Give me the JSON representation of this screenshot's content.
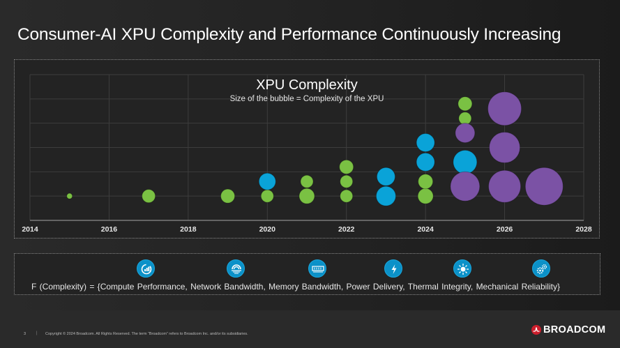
{
  "slide": {
    "title": "Consumer-AI XPU Complexity and Performance Continuously Increasing",
    "formula": "F (Complexity)  =  {Compute Performance,  Network Bandwidth,  Memory Bandwidth,  Power Delivery,  Thermal Integrity,  Mechanical Reliability}",
    "factors": [
      {
        "label": "Compute Performance",
        "icon": "compute-performance-icon"
      },
      {
        "label": "Network Bandwidth",
        "icon": "network-bandwidth-icon"
      },
      {
        "label": "Memory Bandwidth",
        "icon": "memory-bandwidth-icon"
      },
      {
        "label": "Power Delivery",
        "icon": "power-delivery-icon"
      },
      {
        "label": "Thermal Integrity",
        "icon": "thermal-integrity-icon"
      },
      {
        "label": "Mechanical Reliability",
        "icon": "mechanical-reliability-icon"
      }
    ],
    "icon_color": "#0b91c8"
  },
  "footer": {
    "page_number": "3",
    "separator": "|",
    "copyright": "Copyright © 2024 Broadcom.  All Rights Reserved. The term “Broadcom” refers to Broadcom Inc. and/or its subsidiaries.",
    "logo_text": "BROADCOM",
    "logo_color": "#cc1f2d"
  },
  "chart_data": {
    "type": "scatter",
    "subtype": "bubble",
    "title": "XPU Complexity",
    "subtitle": "Size of the bubble = Complexity of the XPU",
    "xlabel": "",
    "ylabel": "",
    "xlim": [
      2014,
      2028
    ],
    "ylim": [
      0,
      6
    ],
    "x_ticks": [
      "2014",
      "2016",
      "2018",
      "2020",
      "2022",
      "2024",
      "2026",
      "2028"
    ],
    "grid": true,
    "legend": "none",
    "series": [
      {
        "name": "green",
        "color": "#7ac143",
        "points": [
          {
            "x": 2015,
            "y": 1.0,
            "size": 4
          },
          {
            "x": 2017,
            "y": 1.0,
            "size": 9.5
          },
          {
            "x": 2019,
            "y": 1.0,
            "size": 10
          },
          {
            "x": 2020,
            "y": 1.0,
            "size": 9
          },
          {
            "x": 2021,
            "y": 1.0,
            "size": 11
          },
          {
            "x": 2021,
            "y": 1.6,
            "size": 9
          },
          {
            "x": 2022,
            "y": 1.0,
            "size": 9
          },
          {
            "x": 2022,
            "y": 1.6,
            "size": 9
          },
          {
            "x": 2022,
            "y": 2.2,
            "size": 10
          },
          {
            "x": 2024,
            "y": 1.0,
            "size": 11
          },
          {
            "x": 2024,
            "y": 1.6,
            "size": 10.5
          },
          {
            "x": 2025,
            "y": 4.2,
            "size": 9
          },
          {
            "x": 2025,
            "y": 4.8,
            "size": 10
          }
        ]
      },
      {
        "name": "blue",
        "color": "#0aa3d8",
        "points": [
          {
            "x": 2020,
            "y": 1.6,
            "size": 12
          },
          {
            "x": 2023,
            "y": 1.0,
            "size": 14
          },
          {
            "x": 2023,
            "y": 1.8,
            "size": 13
          },
          {
            "x": 2024,
            "y": 2.4,
            "size": 13
          },
          {
            "x": 2024,
            "y": 3.2,
            "size": 13
          },
          {
            "x": 2025,
            "y": 2.4,
            "size": 17
          }
        ]
      },
      {
        "name": "purple",
        "color": "#7b52a5",
        "points": [
          {
            "x": 2025,
            "y": 1.4,
            "size": 21
          },
          {
            "x": 2025,
            "y": 3.6,
            "size": 14
          },
          {
            "x": 2026,
            "y": 1.4,
            "size": 23
          },
          {
            "x": 2026,
            "y": 3.0,
            "size": 22
          },
          {
            "x": 2026,
            "y": 4.6,
            "size": 24
          },
          {
            "x": 2027,
            "y": 1.4,
            "size": 27
          }
        ]
      }
    ]
  }
}
